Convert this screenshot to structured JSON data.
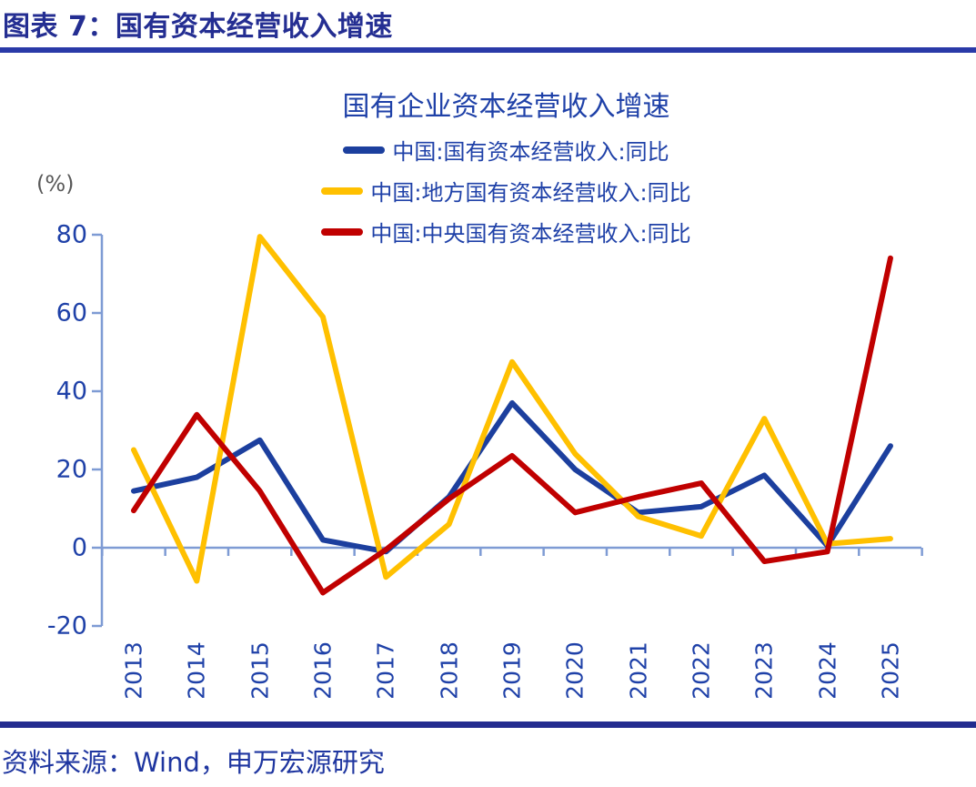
{
  "header": {
    "title": "图表 7：国有资本经营收入增速"
  },
  "source": {
    "label": "资料来源：Wind，申万宏源研究"
  },
  "chart_data": {
    "type": "line",
    "title": "国有企业资本经营收入增速",
    "unit_label": "(%)",
    "xlabel": "",
    "ylabel": "(%)",
    "categories": [
      "2013",
      "2014",
      "2015",
      "2016",
      "2017",
      "2018",
      "2019",
      "2020",
      "2021",
      "2022",
      "2023",
      "2024",
      "2025"
    ],
    "series": [
      {
        "name": "中国:国有资本经营收入:同比",
        "color": "#1C3F9E",
        "values": [
          14.5,
          18,
          27.5,
          2,
          -1,
          13,
          37,
          20,
          9,
          10.5,
          18.5,
          0.5,
          26
        ]
      },
      {
        "name": "中国:地方国有资本经营收入:同比",
        "color": "#FFC000",
        "values": [
          25,
          -8.5,
          79.5,
          59,
          -7.5,
          6,
          47.5,
          24,
          8,
          3,
          33,
          1,
          2.3
        ]
      },
      {
        "name": "中国:中央国有资本经营收入:同比",
        "color": "#C00000",
        "values": [
          9.5,
          34,
          14.5,
          -11.5,
          -0.5,
          12.5,
          23.5,
          9,
          13,
          16.5,
          -3.5,
          -1,
          74
        ]
      }
    ],
    "y_ticks": [
      80,
      60,
      40,
      20,
      0,
      -20
    ],
    "ylim": [
      -20,
      80
    ],
    "legend_position": "top",
    "grid": false,
    "axis_color": "#7E9BD4"
  },
  "colors": {
    "header_navy": "#242E92",
    "top_rule": "#2A3AA8",
    "bottom_rule": "#232C8F",
    "chart_text_blue": "#1F41A8",
    "unit_gray": "#595959"
  }
}
